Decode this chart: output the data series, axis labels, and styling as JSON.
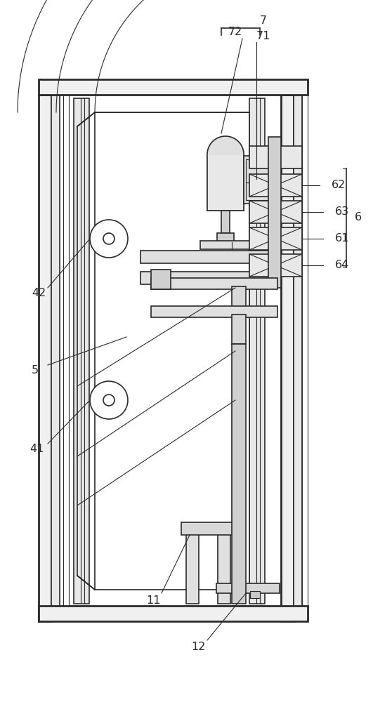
{
  "bg_color": "#ffffff",
  "lc": "#2a2a2a",
  "lw_thin": 0.8,
  "lw_med": 1.2,
  "lw_thick": 2.0,
  "fig_w": 5.31,
  "fig_h": 10.0,
  "dpi": 100
}
